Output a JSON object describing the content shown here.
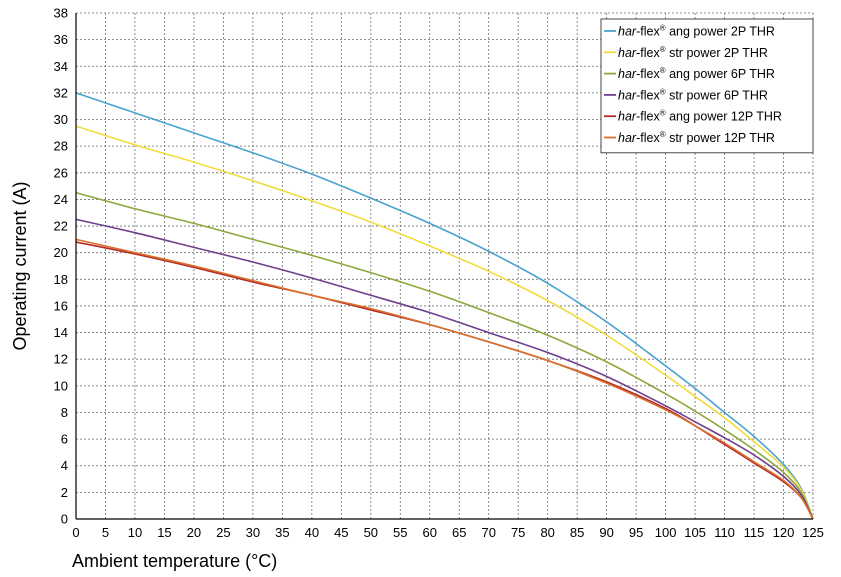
{
  "chart_data": {
    "type": "line",
    "xlabel": "Ambient temperature (°C)",
    "ylabel": "Operating current (A)",
    "xlim": [
      0,
      125
    ],
    "ylim": [
      0,
      38
    ],
    "xticks": [
      0,
      5,
      10,
      15,
      20,
      25,
      30,
      35,
      40,
      45,
      50,
      55,
      60,
      65,
      70,
      75,
      80,
      85,
      90,
      95,
      100,
      105,
      110,
      115,
      120,
      125
    ],
    "yticks": [
      0,
      2,
      4,
      6,
      8,
      10,
      12,
      14,
      16,
      18,
      20,
      22,
      24,
      26,
      28,
      30,
      32,
      34,
      36,
      38
    ],
    "grid": true,
    "legend_position": "top-right",
    "series": [
      {
        "name_prefix": "har",
        "name_mid": "-flex",
        "name_mark": "®",
        "name_suffix": " ang power 2P THR",
        "color": "#4aa3cf",
        "x": [
          0,
          10,
          20,
          30,
          40,
          50,
          60,
          70,
          80,
          90,
          100,
          105,
          110,
          115,
          120,
          123,
          125
        ],
        "y": [
          32,
          30.5,
          29,
          27.5,
          25.9,
          24.1,
          22.2,
          20.1,
          17.7,
          14.8,
          11.5,
          9.8,
          8.0,
          6.2,
          4.1,
          2.3,
          0
        ]
      },
      {
        "name_prefix": "har",
        "name_mid": "-flex",
        "name_mark": "®",
        "name_suffix": " str power 2P THR",
        "color": "#f2dc3c",
        "x": [
          0,
          10,
          20,
          30,
          40,
          50,
          60,
          70,
          80,
          90,
          100,
          105,
          110,
          115,
          120,
          123,
          125
        ],
        "y": [
          29.5,
          28.1,
          26.8,
          25.4,
          23.9,
          22.3,
          20.5,
          18.6,
          16.4,
          13.8,
          10.8,
          9.2,
          7.6,
          5.8,
          3.9,
          2.2,
          0
        ]
      },
      {
        "name_prefix": "har",
        "name_mid": "-flex",
        "name_mark": "®",
        "name_suffix": " ang power 6P THR",
        "color": "#8ba83c",
        "x": [
          0,
          10,
          20,
          30,
          40,
          50,
          60,
          70,
          80,
          90,
          100,
          105,
          110,
          115,
          120,
          123,
          125
        ],
        "y": [
          24.5,
          23.3,
          22.2,
          21,
          19.8,
          18.5,
          17.1,
          15.5,
          13.8,
          11.8,
          9.4,
          8.1,
          6.7,
          5.2,
          3.5,
          2.0,
          0
        ]
      },
      {
        "name_prefix": "har",
        "name_mid": "-flex",
        "name_mark": "®",
        "name_suffix": " str power 6P THR",
        "color": "#6d3f8e",
        "x": [
          0,
          10,
          20,
          30,
          40,
          50,
          60,
          70,
          80,
          90,
          100,
          105,
          110,
          115,
          120,
          123,
          125
        ],
        "y": [
          22.5,
          21.5,
          20.4,
          19.3,
          18.1,
          16.8,
          15.5,
          14.0,
          12.5,
          10.7,
          8.5,
          7.3,
          6.1,
          4.8,
          3.2,
          1.8,
          0
        ]
      },
      {
        "name_prefix": "har",
        "name_mid": "-flex",
        "name_mark": "®",
        "name_suffix": " ang power 12P THR",
        "color": "#b52a2a",
        "x": [
          0,
          10,
          20,
          30,
          40,
          50,
          60,
          70,
          80,
          90,
          100,
          105,
          110,
          115,
          120,
          123,
          125
        ],
        "y": [
          20.8,
          19.9,
          18.9,
          17.8,
          16.8,
          15.7,
          14.6,
          13.3,
          11.9,
          10.3,
          8.3,
          7.0,
          5.6,
          4.2,
          2.8,
          1.6,
          0
        ]
      },
      {
        "name_prefix": "har",
        "name_mid": "-flex",
        "name_mark": "®",
        "name_suffix": " str power 12P THR",
        "color": "#d9702a",
        "x": [
          0,
          10,
          20,
          30,
          40,
          50,
          60,
          70,
          80,
          90,
          100,
          105,
          110,
          115,
          120,
          123,
          125
        ],
        "y": [
          21,
          20,
          19.0,
          17.9,
          16.8,
          15.8,
          14.6,
          13.3,
          11.9,
          10.2,
          8.2,
          7.0,
          5.7,
          4.3,
          2.9,
          1.6,
          0
        ]
      }
    ]
  }
}
